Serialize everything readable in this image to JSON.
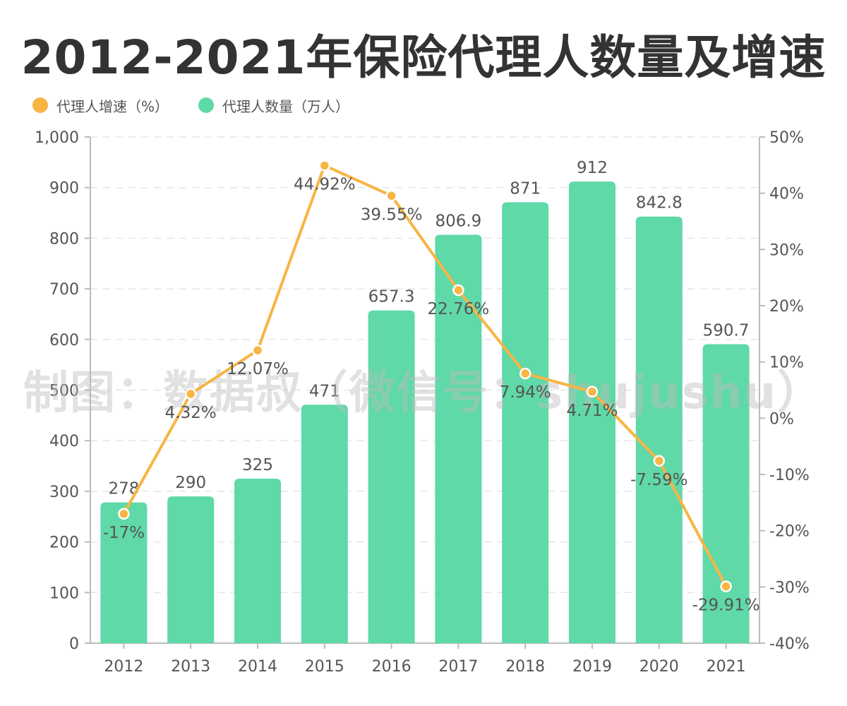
{
  "title": "2012-2021年保险代理人数量及增速",
  "legend": {
    "rate_label": "代理人增速（%）",
    "count_label": "代理人数量（万人）"
  },
  "colors": {
    "bar": "#5fd9a7",
    "line": "#f7b544",
    "text": "#555555",
    "title": "#333333",
    "axis": "#bbbbbb",
    "grid": "#e6e6e6",
    "watermark": "#bdbdbd"
  },
  "watermark": "制图：数据叔（微信号：shujushu）",
  "chart_data": {
    "type": "bar",
    "categories": [
      "2012",
      "2013",
      "2014",
      "2015",
      "2016",
      "2017",
      "2018",
      "2019",
      "2020",
      "2021"
    ],
    "series": [
      {
        "name": "代理人数量（万人）",
        "type": "bar",
        "axis": "left",
        "values": [
          278,
          290,
          325,
          471,
          657.3,
          806.9,
          871,
          912,
          842.8,
          590.7
        ],
        "labels": [
          "278",
          "290",
          "325",
          "471",
          "657.3",
          "806.9",
          "871",
          "912",
          "842.8",
          "590.7"
        ]
      },
      {
        "name": "代理人增速（%）",
        "type": "line",
        "axis": "right",
        "values": [
          -17,
          4.32,
          12.07,
          44.92,
          39.55,
          22.76,
          7.94,
          4.71,
          -7.59,
          -29.91
        ],
        "labels": [
          "-17%",
          "4.32%",
          "12.07%",
          "44.92%",
          "39.55%",
          "22.76%",
          "7.94%",
          "4.71%",
          "-7.59%",
          "-29.91%"
        ]
      }
    ],
    "y_left": {
      "min": 0,
      "max": 1000,
      "ticks": [
        0,
        100,
        200,
        300,
        400,
        500,
        600,
        700,
        800,
        900,
        1000
      ],
      "tick_labels": [
        "0",
        "100",
        "200",
        "300",
        "400",
        "500",
        "600",
        "700",
        "800",
        "900",
        "1,000"
      ]
    },
    "y_right": {
      "min": -40,
      "max": 50,
      "ticks": [
        -40,
        -30,
        -20,
        -10,
        0,
        10,
        20,
        30,
        40,
        50
      ],
      "tick_labels": [
        "-40%",
        "-30%",
        "-20%",
        "-10%",
        "0%",
        "10%",
        "20%",
        "30%",
        "40%",
        "50%"
      ]
    },
    "grid": true,
    "legend_position": "top-left"
  }
}
